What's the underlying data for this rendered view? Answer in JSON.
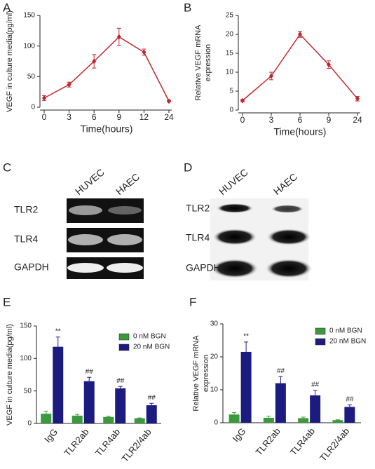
{
  "chart_data": [
    {
      "type": "line",
      "panel": "A",
      "ylabel": [
        "VEGF in culture media(pg/ml)"
      ],
      "xlabel": "Time(hours)",
      "categories": [
        "0",
        "3",
        "6",
        "9",
        "12",
        "24"
      ],
      "series": [
        {
          "color": "#c0272d",
          "values": [
            15,
            37,
            75,
            115,
            90,
            10
          ],
          "errors": [
            4,
            4,
            11,
            14,
            5,
            1
          ]
        }
      ],
      "ylim": [
        0,
        150
      ],
      "yticks": [
        0,
        50,
        100,
        150
      ]
    },
    {
      "type": "line",
      "panel": "B",
      "ylabel": [
        "Relative VEGF mRNA",
        "expression"
      ],
      "xlabel": "Time(hours)",
      "categories": [
        "0",
        "3",
        "6",
        "9",
        "24"
      ],
      "series": [
        {
          "color": "#c0272d",
          "values": [
            2.5,
            9,
            20,
            12,
            3
          ],
          "errors": [
            0.3,
            1,
            0.8,
            1,
            0.6
          ]
        }
      ],
      "ylim": [
        0,
        25
      ],
      "yticks": [
        0,
        5,
        10,
        15,
        20,
        25
      ]
    },
    {
      "type": "bar",
      "panel": "E",
      "ylabel": [
        "VEGF in culture media(pg/ml)"
      ],
      "categories": [
        "IgG",
        "TLR2ab",
        "TLR4ab",
        "TLR2/4ab"
      ],
      "series": [
        {
          "name": "0 nM BGN",
          "color": "#3c9a3c",
          "values": [
            15,
            12,
            10,
            8
          ],
          "errors": [
            4,
            2,
            1,
            0.5
          ]
        },
        {
          "name": "20 nM BGN",
          "color": "#1c1c80",
          "values": [
            118,
            65,
            54,
            28
          ],
          "errors": [
            15,
            6,
            3,
            3
          ],
          "annotations": [
            "**",
            "##",
            "##",
            "##"
          ]
        }
      ],
      "ylim": [
        0,
        150
      ],
      "yticks": [
        0,
        50,
        100,
        150
      ]
    },
    {
      "type": "bar",
      "panel": "F",
      "ylabel": [
        "Relative VEGF mRNA",
        "expression"
      ],
      "categories": [
        "IgG",
        "TLR2ab",
        "TLR4ab",
        "TLR2/4ab"
      ],
      "series": [
        {
          "name": "0 nM BGN",
          "color": "#3c9a3c",
          "values": [
            2.5,
            1.5,
            1.4,
            0.8
          ],
          "errors": [
            0.6,
            0.5,
            0.3,
            0.1
          ]
        },
        {
          "name": "20 nM BGN",
          "color": "#1c1c80",
          "values": [
            21.5,
            12,
            8.3,
            4.8
          ],
          "errors": [
            3,
            2,
            1.5,
            0.6
          ],
          "annotations": [
            "**",
            "##",
            "##",
            "##"
          ]
        }
      ],
      "ylim": [
        0,
        30
      ],
      "yticks": [
        0,
        10,
        20,
        30
      ]
    }
  ],
  "blots": [
    {
      "panel": "C",
      "lanes": [
        "HUVEC",
        "HAEC"
      ],
      "rows": [
        "TLR2",
        "TLR4",
        "GAPDH"
      ]
    },
    {
      "panel": "D",
      "lanes": [
        "HUVEC",
        "HAEC"
      ],
      "rows": [
        "TLR2",
        "TLR4",
        "GAPDH"
      ]
    }
  ]
}
